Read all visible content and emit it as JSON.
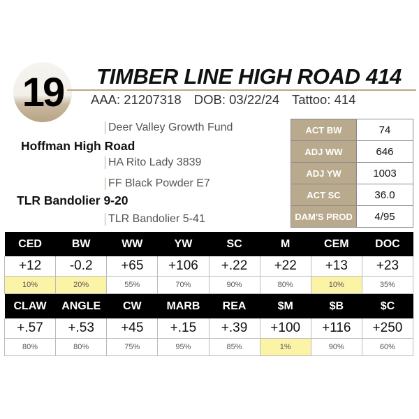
{
  "lot_number": "19",
  "title": "TIMBER LINE HIGH ROAD 414",
  "registration": "AAA: 21207318",
  "dob": "DOB: 03/22/24",
  "tattoo": "Tattoo: 414",
  "pedigree": {
    "sire": "Hoffman High Road",
    "sire_sire": "Deer Valley Growth Fund",
    "sire_dam": "HA Rito Lady 3839",
    "dam": "TLR Bandolier 9-20",
    "dam_sire": "FF Black Powder E7",
    "dam_dam": "TLR Bandolier 5-41"
  },
  "stats": [
    {
      "label": "ACT BW",
      "value": "74"
    },
    {
      "label": "ADJ WW",
      "value": "646"
    },
    {
      "label": "ADJ YW",
      "value": "1003"
    },
    {
      "label": "ACT SC",
      "value": "36.0"
    },
    {
      "label": "DAM'S PROD",
      "value": "4/95"
    }
  ],
  "highlight_color": "#fbf3a6",
  "accent_color": "#b9a98d",
  "epd_rows": [
    {
      "headers": [
        "CED",
        "BW",
        "WW",
        "YW",
        "SC",
        "M",
        "CEM",
        "DOC"
      ],
      "values": [
        "+12",
        "-0.2",
        "+65",
        "+106",
        "+.22",
        "+22",
        "+13",
        "+23"
      ],
      "percentiles": [
        "10%",
        "20%",
        "55%",
        "70%",
        "90%",
        "80%",
        "10%",
        "35%"
      ],
      "highlighted": [
        true,
        true,
        false,
        false,
        false,
        false,
        true,
        false
      ]
    },
    {
      "headers": [
        "CLAW",
        "ANGLE",
        "CW",
        "MARB",
        "REA",
        "$M",
        "$B",
        "$C"
      ],
      "values": [
        "+.57",
        "+.53",
        "+45",
        "+.15",
        "+.39",
        "+100",
        "+116",
        "+250"
      ],
      "percentiles": [
        "80%",
        "80%",
        "75%",
        "95%",
        "85%",
        "1%",
        "90%",
        "60%"
      ],
      "highlighted": [
        false,
        false,
        false,
        false,
        false,
        true,
        false,
        false
      ]
    }
  ]
}
